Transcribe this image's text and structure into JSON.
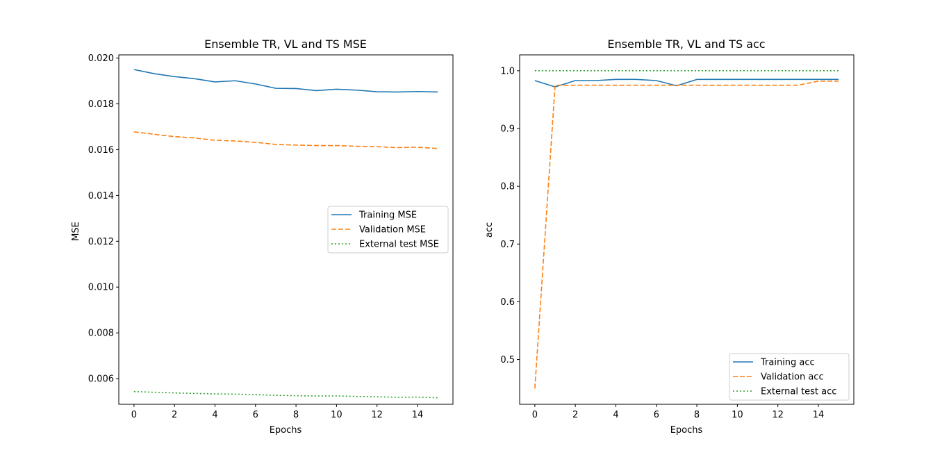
{
  "chart_data": [
    {
      "type": "line",
      "title": "Ensemble TR, VL and TS MSE",
      "xlabel": "Epochs",
      "ylabel": "MSE",
      "xlim": [
        -0.75,
        15.75
      ],
      "ylim": [
        0.00488,
        0.02014
      ],
      "xticks": [
        0,
        2,
        4,
        6,
        8,
        10,
        12,
        14
      ],
      "xtick_labels": [
        "0",
        "2",
        "4",
        "6",
        "8",
        "10",
        "12",
        "14"
      ],
      "yticks": [
        0.006,
        0.008,
        0.01,
        0.012,
        0.014,
        0.016,
        0.018,
        0.02
      ],
      "ytick_labels": [
        "0.006",
        "0.008",
        "0.010",
        "0.012",
        "0.014",
        "0.016",
        "0.018",
        "0.020"
      ],
      "legend_position": "center-right",
      "x": [
        0,
        1,
        2,
        3,
        4,
        5,
        6,
        7,
        8,
        9,
        10,
        11,
        12,
        13,
        14,
        15
      ],
      "series": [
        {
          "name": "Training MSE",
          "style": "solid",
          "color": "#1f77b4",
          "values": [
            0.0195,
            0.01932,
            0.01919,
            0.0191,
            0.01896,
            0.01901,
            0.01887,
            0.01868,
            0.01867,
            0.01858,
            0.01864,
            0.0186,
            0.01853,
            0.01852,
            0.01854,
            0.01852
          ]
        },
        {
          "name": "Validation MSE",
          "style": "dashed",
          "color": "#ff7f0e",
          "values": [
            0.01678,
            0.01667,
            0.01657,
            0.01651,
            0.01641,
            0.01638,
            0.01632,
            0.01623,
            0.0162,
            0.01618,
            0.01618,
            0.01615,
            0.01613,
            0.01609,
            0.01611,
            0.01605
          ]
        },
        {
          "name": "External test MSE",
          "style": "dotted",
          "color": "#2ca02c",
          "values": [
            0.005435,
            0.005405,
            0.005375,
            0.005355,
            0.005335,
            0.005325,
            0.0053,
            0.00527,
            0.005255,
            0.005245,
            0.005245,
            0.005225,
            0.00521,
            0.005185,
            0.005195,
            0.005165
          ]
        }
      ]
    },
    {
      "type": "line",
      "title": "Ensemble TR, VL and TS acc",
      "xlabel": "Epochs",
      "ylabel": "acc",
      "xlim": [
        -0.75,
        15.75
      ],
      "ylim": [
        0.4225,
        1.0275
      ],
      "xticks": [
        0,
        2,
        4,
        6,
        8,
        10,
        12,
        14
      ],
      "xtick_labels": [
        "0",
        "2",
        "4",
        "6",
        "8",
        "10",
        "12",
        "14"
      ],
      "yticks": [
        0.5,
        0.6,
        0.7,
        0.8,
        0.9,
        1.0
      ],
      "ytick_labels": [
        "0.5",
        "0.6",
        "0.7",
        "0.8",
        "0.9",
        "1.0"
      ],
      "legend_position": "lower-right",
      "x": [
        0,
        1,
        2,
        3,
        4,
        5,
        6,
        7,
        8,
        9,
        10,
        11,
        12,
        13,
        14,
        15
      ],
      "series": [
        {
          "name": "Training acc",
          "style": "solid",
          "color": "#1f77b4",
          "values": [
            0.983,
            0.972,
            0.983,
            0.983,
            0.985,
            0.985,
            0.983,
            0.974,
            0.985,
            0.985,
            0.985,
            0.985,
            0.985,
            0.985,
            0.985,
            0.985
          ]
        },
        {
          "name": "Validation acc",
          "style": "dashed",
          "color": "#ff7f0e",
          "values": [
            0.45,
            0.975,
            0.975,
            0.975,
            0.975,
            0.975,
            0.975,
            0.975,
            0.975,
            0.975,
            0.975,
            0.975,
            0.975,
            0.975,
            0.982,
            0.982
          ]
        },
        {
          "name": "External test acc",
          "style": "dotted",
          "color": "#2ca02c",
          "values": [
            1.0,
            1.0,
            1.0,
            1.0,
            1.0,
            1.0,
            1.0,
            1.0,
            1.0,
            1.0,
            1.0,
            1.0,
            1.0,
            1.0,
            1.0,
            1.0
          ]
        }
      ]
    }
  ]
}
